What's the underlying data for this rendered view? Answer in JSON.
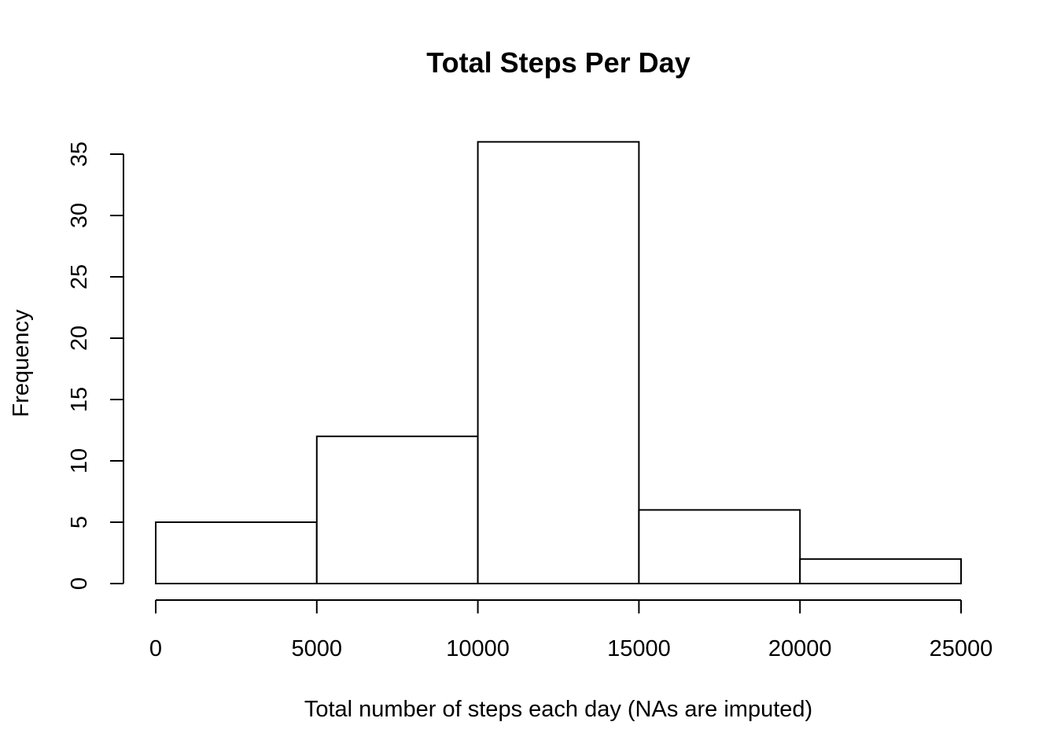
{
  "chart_data": {
    "type": "bar",
    "title": "Total Steps Per Day",
    "xlabel": "Total number of steps each day (NAs are imputed)",
    "ylabel": "Frequency",
    "bin_edges": [
      0,
      5000,
      10000,
      15000,
      20000,
      25000
    ],
    "values": [
      5,
      12,
      36,
      6,
      2
    ],
    "x_ticks": [
      0,
      5000,
      10000,
      15000,
      20000,
      25000
    ],
    "x_tick_labels": [
      "0",
      "5000",
      "10000",
      "15000",
      "20000",
      "25000"
    ],
    "y_ticks": [
      0,
      5,
      10,
      15,
      20,
      25,
      30,
      35
    ],
    "y_tick_labels": [
      "0",
      "5",
      "10",
      "15",
      "20",
      "25",
      "30",
      "35"
    ],
    "xlim": [
      0,
      25000
    ],
    "ylim": [
      0,
      35
    ],
    "grid": false,
    "bar_fill": "#ffffff",
    "bar_stroke": "#000000"
  }
}
